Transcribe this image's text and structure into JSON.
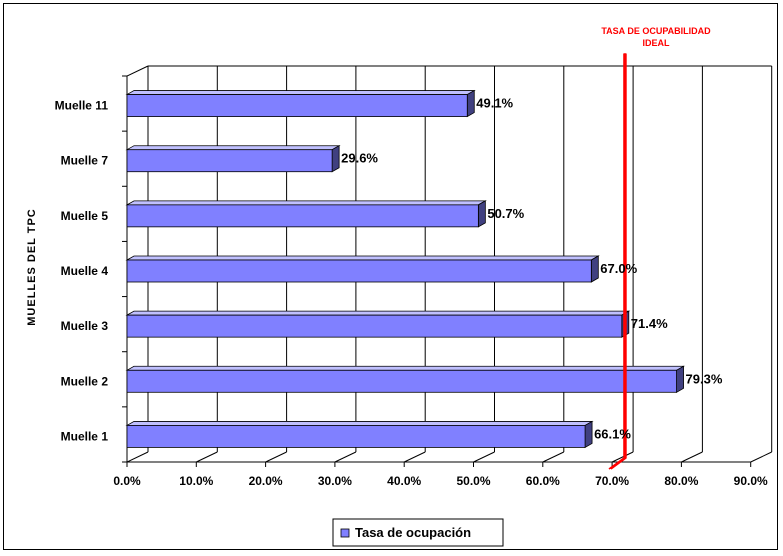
{
  "chart_data": {
    "type": "bar",
    "orientation": "horizontal",
    "categories": [
      "Muelle 1",
      "Muelle 2",
      "Muelle 3",
      "Muelle 4",
      "Muelle 5",
      "Muelle 7",
      "Muelle 11"
    ],
    "series": [
      {
        "name": "Tasa de ocupación",
        "values": [
          66.1,
          79.3,
          71.4,
          67.0,
          50.7,
          29.6,
          49.1
        ],
        "color": "#8080ff"
      }
    ],
    "data_labels": [
      "66.1%",
      "79.3%",
      "71.4%",
      "67.0%",
      "50.7%",
      "29.6%",
      "49.1%"
    ],
    "title": "",
    "xlabel": "",
    "ylabel": "MUELLES DEL TPC",
    "xlim": [
      0,
      90
    ],
    "xticks": [
      0,
      10,
      20,
      30,
      40,
      50,
      60,
      70,
      80,
      90
    ],
    "xtick_labels": [
      "0.0%",
      "10.0%",
      "20.0%",
      "30.0%",
      "40.0%",
      "50.0%",
      "60.0%",
      "70.0%",
      "80.0%",
      "90.0%"
    ],
    "grid": true,
    "legend": "bottom",
    "reference_line": {
      "value": 72,
      "label_line1": "TASA DE OCUPABILIDAD",
      "label_line2": "IDEAL",
      "color": "#ff0000"
    }
  }
}
